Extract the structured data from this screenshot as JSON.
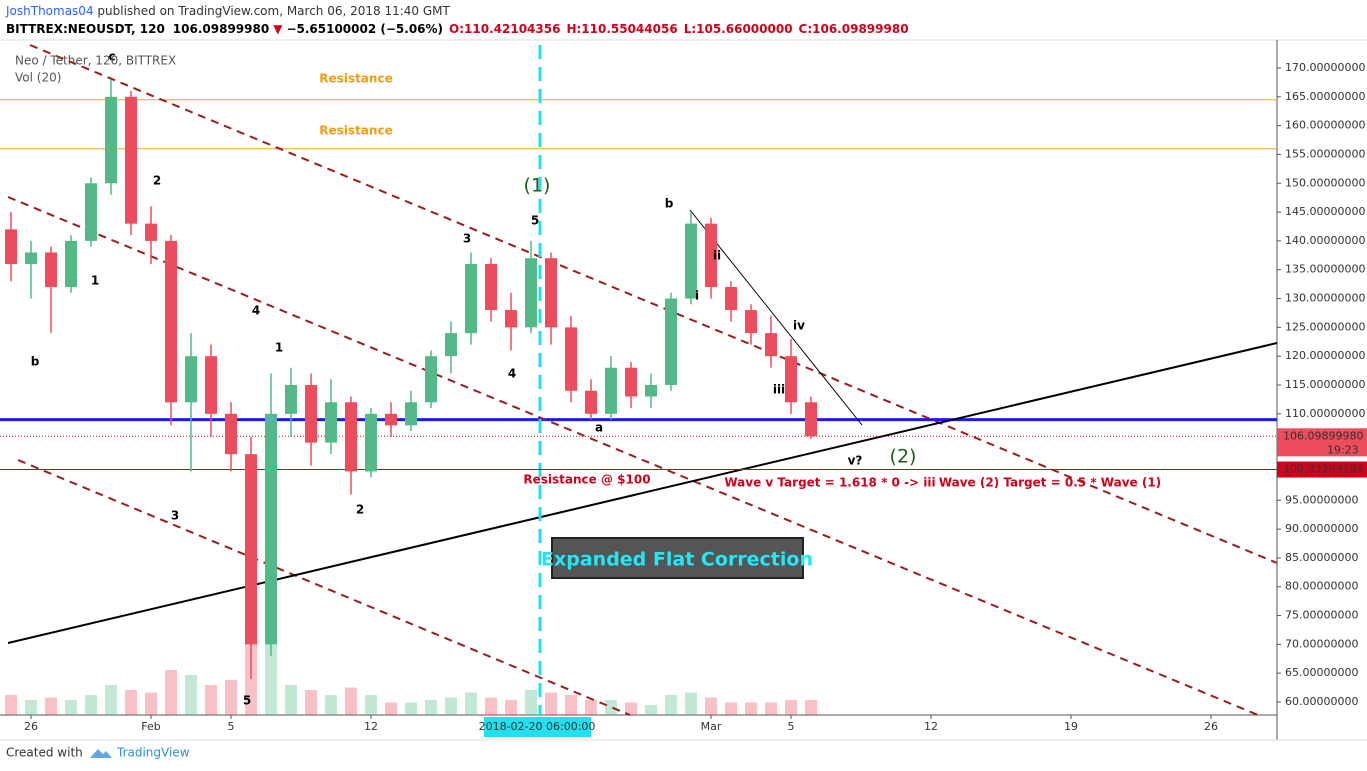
{
  "header": {
    "author": "JoshThomas04",
    "published": " published on TradingView.com, March 06, 2018 11:40 GMT",
    "symbol": "BITTREX:NEOUSDT, 120",
    "last": "106.09899980",
    "arrow": "▼",
    "change": "−5.65100002 (−5.06%)",
    "open": "O:110.42104356",
    "high": "H:110.55044056",
    "low": "L:105.66000000",
    "close": "C:106.09899980"
  },
  "legend": {
    "name": "Neo / Tether, 120, BITTREX",
    "volume": "Vol (20)"
  },
  "footer": {
    "created": "Created with",
    "brand": "TradingView"
  },
  "chart_data": {
    "type": "candlestick",
    "x": [
      -1,
      0,
      1,
      2,
      3,
      4,
      5,
      6,
      7,
      8,
      9,
      10,
      11,
      12,
      13,
      14,
      15,
      16,
      17,
      18,
      19,
      20,
      21,
      22,
      23,
      24,
      25,
      26,
      27,
      28,
      29,
      30,
      31,
      32,
      33,
      34,
      35,
      36,
      37,
      38,
      39
    ],
    "open": [
      142,
      136,
      138,
      132,
      140,
      150,
      165,
      143,
      140,
      112,
      120,
      110,
      103,
      70,
      110,
      115,
      105,
      112,
      100,
      110,
      108,
      112,
      120,
      124,
      136,
      128,
      125,
      137,
      125,
      114,
      110,
      118,
      113,
      115,
      130,
      143,
      132,
      128,
      124,
      120,
      112
    ],
    "high": [
      145,
      140,
      139,
      141,
      151,
      168,
      166,
      146,
      141,
      124,
      122,
      112,
      106,
      117,
      118,
      117,
      116,
      113,
      111,
      112,
      114,
      121,
      126,
      138,
      137,
      131,
      140,
      138,
      127,
      116,
      120,
      119,
      117,
      131,
      145,
      144,
      133,
      129,
      127,
      123,
      113
    ],
    "low": [
      133,
      130,
      124,
      131,
      139,
      148,
      141,
      136,
      108,
      100,
      106,
      100,
      64,
      68,
      106,
      101,
      103,
      96,
      99,
      106,
      107,
      111,
      117,
      122,
      126,
      121,
      124,
      122,
      112,
      109,
      109,
      111,
      111,
      114,
      129,
      130,
      126,
      122,
      118,
      110,
      105.66
    ],
    "close": [
      136,
      138,
      132,
      140,
      150,
      165,
      143,
      140,
      112,
      120,
      110,
      103,
      70,
      110,
      115,
      105,
      112,
      100,
      110,
      108,
      112,
      120,
      124,
      136,
      128,
      125,
      137,
      125,
      114,
      110,
      118,
      113,
      115,
      130,
      143,
      132,
      128,
      124,
      120,
      112,
      106.0989998
    ],
    "volume": [
      8,
      6,
      7,
      6,
      8,
      12,
      10,
      9,
      18,
      16,
      12,
      14,
      40,
      30,
      12,
      10,
      8,
      11,
      8,
      5,
      5,
      6,
      7,
      9,
      7,
      6,
      10,
      9,
      8,
      6,
      6,
      5,
      4,
      8,
      9,
      7,
      5,
      5,
      5,
      6,
      6
    ],
    "vol_ylim": [
      0,
      100
    ],
    "up_color": "#53b987",
    "down_color": "#eb4d5c",
    "xlim": [
      -1.15,
      62.3
    ],
    "ylim": [
      60,
      170
    ],
    "xticks": [
      {
        "value": 0,
        "label": "26"
      },
      {
        "value": 6,
        "label": "Feb"
      },
      {
        "value": 10,
        "label": "5"
      },
      {
        "value": 17,
        "label": "12"
      },
      {
        "value": 34,
        "label": "Mar"
      },
      {
        "value": 38,
        "label": "5"
      },
      {
        "value": 45,
        "label": "12"
      },
      {
        "value": 52,
        "label": "19"
      },
      {
        "value": 59,
        "label": "26"
      }
    ],
    "yticks": [
      {
        "value": 170,
        "label": "170.00000000"
      },
      {
        "value": 165,
        "label": "165.00000000"
      },
      {
        "value": 160,
        "label": "160.00000000"
      },
      {
        "value": 155,
        "label": "155.00000000"
      },
      {
        "value": 150,
        "label": "150.00000000"
      },
      {
        "value": 145,
        "label": "145.00000000"
      },
      {
        "value": 140,
        "label": "140.00000000"
      },
      {
        "value": 135,
        "label": "135.00000000"
      },
      {
        "value": 130,
        "label": "130.00000000"
      },
      {
        "value": 125,
        "label": "125.00000000"
      },
      {
        "value": 120,
        "label": "120.00000000"
      },
      {
        "value": 115,
        "label": "115.00000000"
      },
      {
        "value": 110,
        "label": "110.00000000"
      },
      {
        "value": 95,
        "label": "95.00000000"
      },
      {
        "value": 90,
        "label": "90.00000000"
      },
      {
        "value": 85,
        "label": "85.00000000"
      },
      {
        "value": 80,
        "label": "80.00000000"
      },
      {
        "value": 75,
        "label": "75.00000000"
      },
      {
        "value": 70,
        "label": "70.00000000"
      },
      {
        "value": 65,
        "label": "65.00000000"
      },
      {
        "value": 60,
        "label": "60.00000000"
      }
    ],
    "levels": [
      {
        "value": 164.5,
        "color": "#f5a623"
      },
      {
        "value": 156,
        "color": "#f5a623"
      },
      {
        "value": 109,
        "color": "#1a1aff"
      }
    ],
    "price_labels": [
      {
        "value": 106.0989998,
        "label": "106.09899980"
      },
      {
        "value": 100.33293189,
        "label": "100.33293189"
      }
    ],
    "countdown": "19:23",
    "crosshair": "2018-02-20 06:00:00",
    "box": "Expanded Flat Correction",
    "annotations": [
      {
        "text": "c",
        "color": "#000"
      },
      {
        "text": "2",
        "color": "#000"
      },
      {
        "text": "1",
        "color": "#000"
      },
      {
        "text": "b",
        "color": "#000"
      },
      {
        "text": "4",
        "color": "#000"
      },
      {
        "text": "3",
        "color": "#000"
      },
      {
        "text": "5",
        "color": "#000"
      },
      {
        "text": "1",
        "color": "#000"
      },
      {
        "text": "2",
        "color": "#000"
      },
      {
        "text": "3",
        "color": "#000"
      },
      {
        "text": "4",
        "color": "#000"
      },
      {
        "text": "5",
        "color": "#000"
      },
      {
        "text": "(1)",
        "color": "#1b5e20"
      },
      {
        "text": "a",
        "color": "#000"
      },
      {
        "text": "b",
        "color": "#000"
      },
      {
        "text": "ii",
        "color": "#000"
      },
      {
        "text": "i",
        "color": "#000"
      },
      {
        "text": "iv",
        "color": "#000"
      },
      {
        "text": "iii",
        "color": "#000"
      },
      {
        "text": "v?",
        "color": "#000"
      },
      {
        "text": "(2)",
        "color": "#1b5e20"
      },
      {
        "text": "Resistance",
        "color": "#f39c12"
      },
      {
        "text": "Resistance",
        "color": "#f39c12"
      },
      {
        "text": "Resistance @ $100",
        "color": "#d0021b"
      },
      {
        "text": "Wave v Target = 1.618 * 0 -> iii",
        "color": "#d0021b"
      },
      {
        "text": "Wave (2) Target = 0.5 * Wave (1)",
        "color": "#d0021b"
      }
    ]
  }
}
